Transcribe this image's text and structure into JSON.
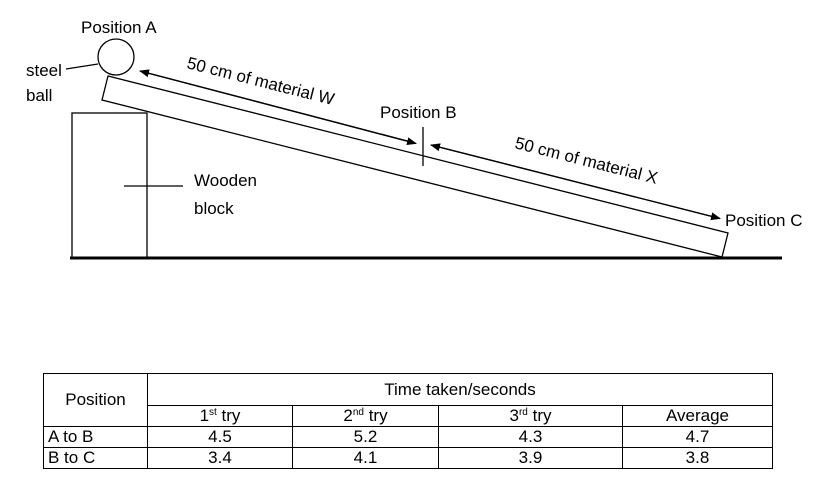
{
  "diagram": {
    "labels": {
      "position_a": "Position A",
      "position_b": "Position B",
      "position_c": "Position C",
      "steel_ball": [
        "steel",
        "ball"
      ],
      "wooden_block": [
        "Wooden",
        "block"
      ],
      "material_w": "50 cm of material W",
      "material_x": "50 cm of material X"
    }
  },
  "table": {
    "row_header": "Position",
    "group_header": "Time taken/seconds",
    "columns": [
      {
        "num": "1",
        "sup": "st",
        "rest": " try"
      },
      {
        "num": "2",
        "sup": "nd",
        "rest": " try"
      },
      {
        "num": "3",
        "sup": "rd",
        "rest": " try"
      },
      {
        "num": "",
        "sup": "",
        "rest": "Average"
      }
    ],
    "rows": [
      {
        "label": "A to B",
        "values": [
          "4.5",
          "5.2",
          "4.3",
          "4.7"
        ]
      },
      {
        "label": "B to C",
        "values": [
          "3.4",
          "4.1",
          "3.9",
          "3.8"
        ]
      }
    ]
  }
}
